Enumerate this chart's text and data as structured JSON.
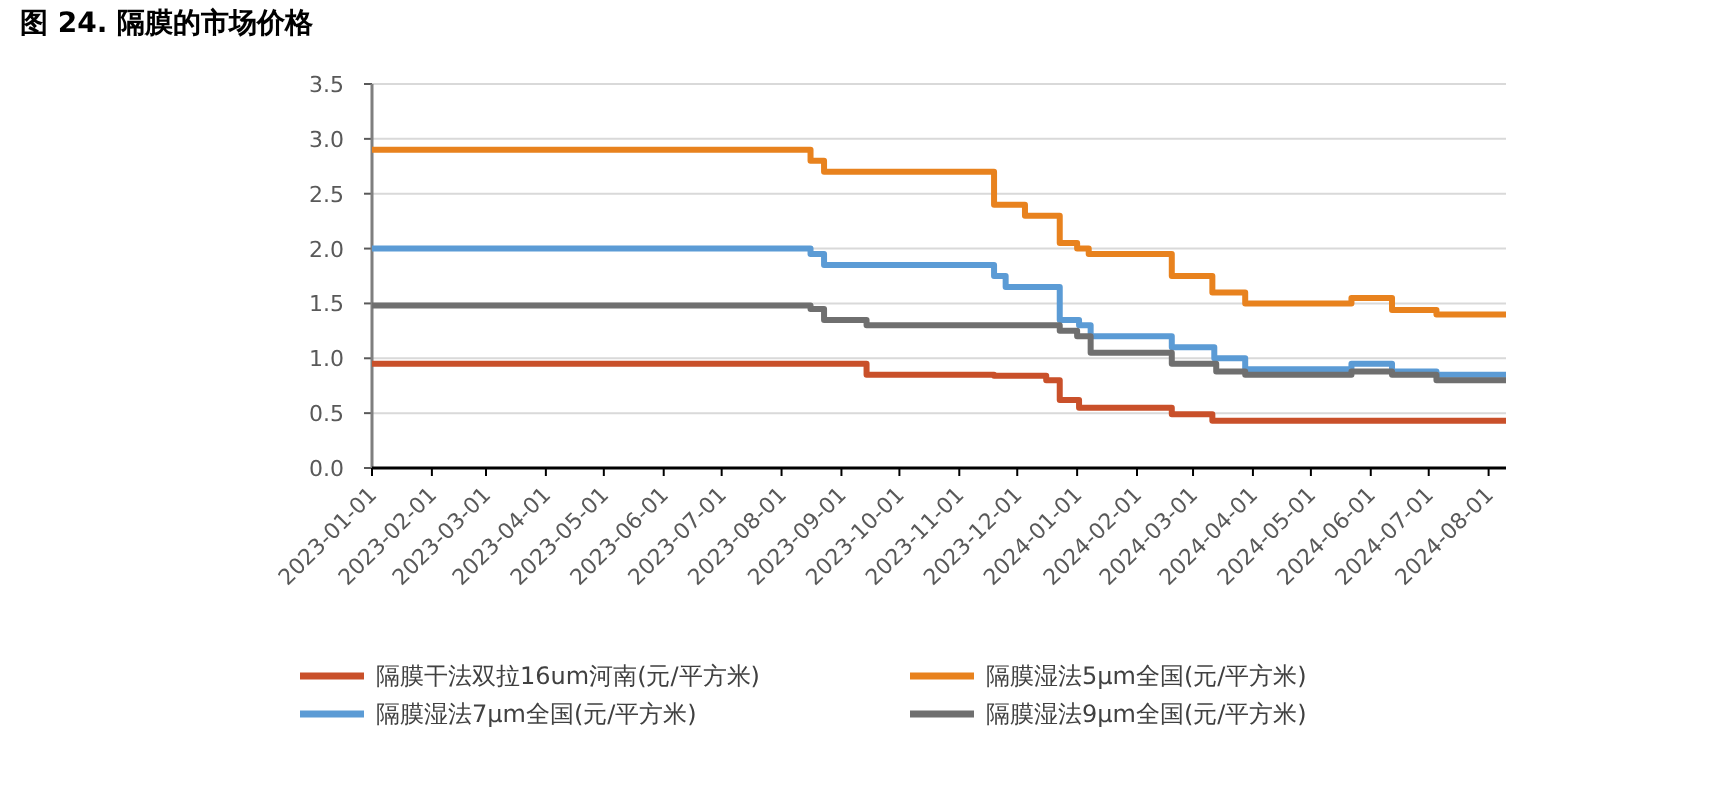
{
  "chart_data": {
    "type": "step",
    "title": "图 24. 隔膜的市场价格",
    "xlim": [
      "2023-01-01",
      "2024-08-10"
    ],
    "xticks": [
      "2023-01-01",
      "2023-02-01",
      "2023-03-01",
      "2023-04-01",
      "2023-05-01",
      "2023-06-01",
      "2023-07-01",
      "2023-08-01",
      "2023-09-01",
      "2023-10-01",
      "2023-11-01",
      "2023-12-01",
      "2024-01-01",
      "2024-02-01",
      "2024-03-01",
      "2024-04-01",
      "2024-05-01",
      "2024-06-01",
      "2024-07-01",
      "2024-08-01"
    ],
    "ylim": [
      0,
      3.5
    ],
    "yticks": [
      {
        "value": 0,
        "label": "0.0"
      },
      {
        "value": 0.5,
        "label": "0.5"
      },
      {
        "value": 1,
        "label": "1.0"
      },
      {
        "value": 1.5,
        "label": "1.5"
      },
      {
        "value": 2,
        "label": "2.0"
      },
      {
        "value": 2.5,
        "label": "2.5"
      },
      {
        "value": 3,
        "label": "3.0"
      },
      {
        "value": 3.5,
        "label": "3.5"
      }
    ],
    "grid": "y",
    "legend": "bottom",
    "line_style": "solid",
    "marker": "none",
    "series": [
      {
        "name": "隔膜干法双拉16um河南(元/平方米)",
        "color": "#c9502a",
        "x": [
          "2023-01-01",
          "2023-09-14",
          "2023-11-19",
          "2023-12-16",
          "2023-12-23",
          "2024-01-02",
          "2024-02-19",
          "2024-03-11",
          "2024-08-10"
        ],
        "values": [
          0.95,
          0.85,
          0.84,
          0.8,
          0.62,
          0.55,
          0.49,
          0.43,
          0.43
        ]
      },
      {
        "name": "隔膜湿法5μm全国(元/平方米)",
        "color": "#e8821e",
        "x": [
          "2023-01-01",
          "2023-08-16",
          "2023-08-23",
          "2023-11-19",
          "2023-12-05",
          "2023-12-23",
          "2024-01-01",
          "2024-01-07",
          "2024-02-19",
          "2024-03-11",
          "2024-03-28",
          "2024-05-22",
          "2024-06-12",
          "2024-07-05",
          "2024-08-10"
        ],
        "values": [
          2.9,
          2.8,
          2.7,
          2.4,
          2.3,
          2.05,
          2.0,
          1.95,
          1.75,
          1.6,
          1.5,
          1.55,
          1.44,
          1.4,
          1.4
        ]
      },
      {
        "name": "隔膜湿法7μm全国(元/平方米)",
        "color": "#5b9bd5",
        "x": [
          "2023-01-01",
          "2023-08-16",
          "2023-08-23",
          "2023-11-19",
          "2023-11-25",
          "2023-12-23",
          "2024-01-02",
          "2024-01-08",
          "2024-02-19",
          "2024-03-12",
          "2024-03-28",
          "2024-05-22",
          "2024-06-12",
          "2024-07-05",
          "2024-08-10"
        ],
        "values": [
          2.0,
          1.95,
          1.85,
          1.75,
          1.65,
          1.35,
          1.3,
          1.2,
          1.1,
          1.0,
          0.9,
          0.95,
          0.88,
          0.85,
          0.85
        ]
      },
      {
        "name": "隔膜湿法9μm全国(元/平方米)",
        "color": "#6f6f6f",
        "x": [
          "2023-01-01",
          "2023-08-16",
          "2023-08-23",
          "2023-09-14",
          "2023-12-23",
          "2024-01-01",
          "2024-01-08",
          "2024-02-19",
          "2024-03-13",
          "2024-03-28",
          "2024-05-22",
          "2024-06-12",
          "2024-07-05",
          "2024-08-10"
        ],
        "values": [
          1.48,
          1.45,
          1.35,
          1.3,
          1.25,
          1.2,
          1.05,
          0.95,
          0.88,
          0.85,
          0.88,
          0.85,
          0.8,
          0.8
        ]
      }
    ]
  }
}
